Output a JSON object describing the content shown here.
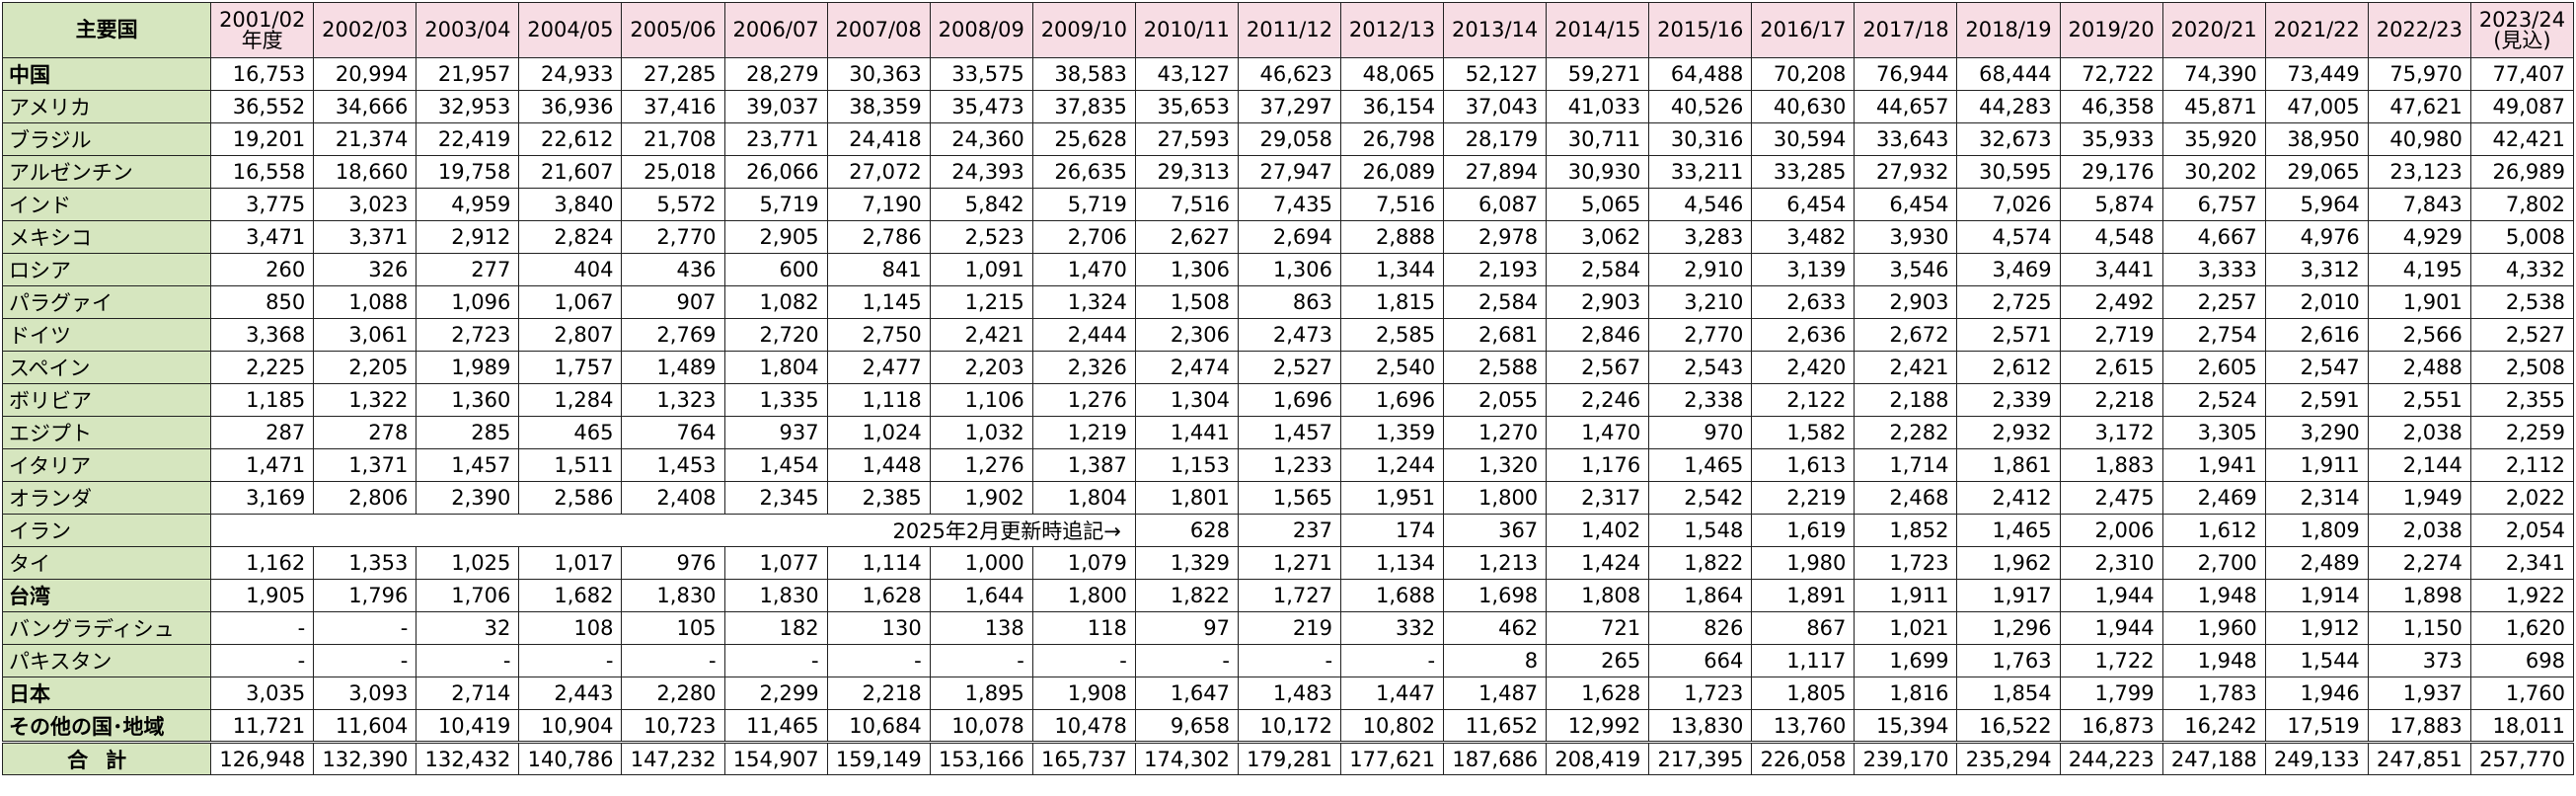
{
  "header": {
    "corner": "主要国",
    "years": [
      "2001/02\n年度",
      "2002/03",
      "2003/04",
      "2004/05",
      "2005/06",
      "2006/07",
      "2007/08",
      "2008/09",
      "2009/10",
      "2010/11",
      "2011/12",
      "2012/13",
      "2013/14",
      "2014/15",
      "2015/16",
      "2016/17",
      "2017/18",
      "2018/19",
      "2019/20",
      "2020/21",
      "2021/22",
      "2022/23",
      "2023/24\n(見込)"
    ]
  },
  "rows": [
    {
      "name": "中国",
      "bold": true,
      "values": [
        "16,753",
        "20,994",
        "21,957",
        "24,933",
        "27,285",
        "28,279",
        "30,363",
        "33,575",
        "38,583",
        "43,127",
        "46,623",
        "48,065",
        "52,127",
        "59,271",
        "64,488",
        "70,208",
        "76,944",
        "68,444",
        "72,722",
        "74,390",
        "73,449",
        "75,970",
        "77,407"
      ]
    },
    {
      "name": "アメリカ",
      "bold": false,
      "values": [
        "36,552",
        "34,666",
        "32,953",
        "36,936",
        "37,416",
        "39,037",
        "38,359",
        "35,473",
        "37,835",
        "35,653",
        "37,297",
        "36,154",
        "37,043",
        "41,033",
        "40,526",
        "40,630",
        "44,657",
        "44,283",
        "46,358",
        "45,871",
        "47,005",
        "47,621",
        "49,087"
      ]
    },
    {
      "name": "ブラジル",
      "bold": false,
      "values": [
        "19,201",
        "21,374",
        "22,419",
        "22,612",
        "21,708",
        "23,771",
        "24,418",
        "24,360",
        "25,628",
        "27,593",
        "29,058",
        "26,798",
        "28,179",
        "30,711",
        "30,316",
        "30,594",
        "33,643",
        "32,673",
        "35,933",
        "35,920",
        "38,950",
        "40,980",
        "42,421"
      ]
    },
    {
      "name": "アルゼンチン",
      "bold": false,
      "values": [
        "16,558",
        "18,660",
        "19,758",
        "21,607",
        "25,018",
        "26,066",
        "27,072",
        "24,393",
        "26,635",
        "29,313",
        "27,947",
        "26,089",
        "27,894",
        "30,930",
        "33,211",
        "33,285",
        "27,932",
        "30,595",
        "29,176",
        "30,202",
        "29,065",
        "23,123",
        "26,989"
      ]
    },
    {
      "name": "インド",
      "bold": false,
      "values": [
        "3,775",
        "3,023",
        "4,959",
        "3,840",
        "5,572",
        "5,719",
        "7,190",
        "5,842",
        "5,719",
        "7,516",
        "7,435",
        "7,516",
        "6,087",
        "5,065",
        "4,546",
        "6,454",
        "6,454",
        "7,026",
        "5,874",
        "6,757",
        "5,964",
        "7,843",
        "7,802"
      ]
    },
    {
      "name": "メキシコ",
      "bold": false,
      "values": [
        "3,471",
        "3,371",
        "2,912",
        "2,824",
        "2,770",
        "2,905",
        "2,786",
        "2,523",
        "2,706",
        "2,627",
        "2,694",
        "2,888",
        "2,978",
        "3,062",
        "3,283",
        "3,482",
        "3,930",
        "4,574",
        "4,548",
        "4,667",
        "4,976",
        "4,929",
        "5,008"
      ]
    },
    {
      "name": "ロシア",
      "bold": false,
      "values": [
        "260",
        "326",
        "277",
        "404",
        "436",
        "600",
        "841",
        "1,091",
        "1,470",
        "1,306",
        "1,306",
        "1,344",
        "2,193",
        "2,584",
        "2,910",
        "3,139",
        "3,546",
        "3,469",
        "3,441",
        "3,333",
        "3,312",
        "4,195",
        "4,332"
      ]
    },
    {
      "name": "パラグァイ",
      "bold": false,
      "values": [
        "850",
        "1,088",
        "1,096",
        "1,067",
        "907",
        "1,082",
        "1,145",
        "1,215",
        "1,324",
        "1,508",
        "863",
        "1,815",
        "2,584",
        "2,903",
        "3,210",
        "2,633",
        "2,903",
        "2,725",
        "2,492",
        "2,257",
        "2,010",
        "1,901",
        "2,538"
      ]
    },
    {
      "name": "ドイツ",
      "bold": false,
      "values": [
        "3,368",
        "3,061",
        "2,723",
        "2,807",
        "2,769",
        "2,720",
        "2,750",
        "2,421",
        "2,444",
        "2,306",
        "2,473",
        "2,585",
        "2,681",
        "2,846",
        "2,770",
        "2,636",
        "2,672",
        "2,571",
        "2,719",
        "2,754",
        "2,616",
        "2,566",
        "2,527"
      ]
    },
    {
      "name": "スペイン",
      "bold": false,
      "values": [
        "2,225",
        "2,205",
        "1,989",
        "1,757",
        "1,489",
        "1,804",
        "2,477",
        "2,203",
        "2,326",
        "2,474",
        "2,527",
        "2,540",
        "2,588",
        "2,567",
        "2,543",
        "2,420",
        "2,421",
        "2,612",
        "2,615",
        "2,605",
        "2,547",
        "2,488",
        "2,508"
      ]
    },
    {
      "name": "ボリビア",
      "bold": false,
      "values": [
        "1,185",
        "1,322",
        "1,360",
        "1,284",
        "1,323",
        "1,335",
        "1,118",
        "1,106",
        "1,276",
        "1,304",
        "1,696",
        "1,696",
        "2,055",
        "2,246",
        "2,338",
        "2,122",
        "2,188",
        "2,339",
        "2,218",
        "2,524",
        "2,591",
        "2,551",
        "2,355"
      ]
    },
    {
      "name": "エジプト",
      "bold": false,
      "values": [
        "287",
        "278",
        "285",
        "465",
        "764",
        "937",
        "1,024",
        "1,032",
        "1,219",
        "1,441",
        "1,457",
        "1,359",
        "1,270",
        "1,470",
        "970",
        "1,582",
        "2,282",
        "2,932",
        "3,172",
        "3,305",
        "3,290",
        "2,038",
        "2,259"
      ]
    },
    {
      "name": "イタリア",
      "bold": false,
      "values": [
        "1,471",
        "1,371",
        "1,457",
        "1,511",
        "1,453",
        "1,454",
        "1,448",
        "1,276",
        "1,387",
        "1,153",
        "1,233",
        "1,244",
        "1,320",
        "1,176",
        "1,465",
        "1,613",
        "1,714",
        "1,861",
        "1,883",
        "1,941",
        "1,911",
        "2,144",
        "2,112"
      ]
    },
    {
      "name": "オランダ",
      "bold": false,
      "values": [
        "3,169",
        "2,806",
        "2,390",
        "2,586",
        "2,408",
        "2,345",
        "2,385",
        "1,902",
        "1,804",
        "1,801",
        "1,565",
        "1,951",
        "1,800",
        "2,317",
        "2,542",
        "2,219",
        "2,468",
        "2,412",
        "2,475",
        "2,469",
        "2,314",
        "1,949",
        "2,022"
      ]
    },
    {
      "name": "イラン",
      "bold": false,
      "note": "2025年2月更新時追記→",
      "values": [
        "",
        "",
        "",
        "",
        "",
        "",
        "",
        "",
        "",
        "628",
        "237",
        "174",
        "367",
        "1,402",
        "1,548",
        "1,619",
        "1,852",
        "1,465",
        "2,006",
        "1,612",
        "1,809",
        "2,038",
        "2,054"
      ]
    },
    {
      "name": "タイ",
      "bold": false,
      "values": [
        "1,162",
        "1,353",
        "1,025",
        "1,017",
        "976",
        "1,077",
        "1,114",
        "1,000",
        "1,079",
        "1,329",
        "1,271",
        "1,134",
        "1,213",
        "1,424",
        "1,822",
        "1,980",
        "1,723",
        "1,962",
        "2,310",
        "2,700",
        "2,489",
        "2,274",
        "2,341"
      ]
    },
    {
      "name": "台湾",
      "bold": true,
      "values": [
        "1,905",
        "1,796",
        "1,706",
        "1,682",
        "1,830",
        "1,830",
        "1,628",
        "1,644",
        "1,800",
        "1,822",
        "1,727",
        "1,688",
        "1,698",
        "1,808",
        "1,864",
        "1,891",
        "1,911",
        "1,917",
        "1,944",
        "1,948",
        "1,914",
        "1,898",
        "1,922"
      ]
    },
    {
      "name": "バングラディシュ",
      "bold": false,
      "values": [
        "-",
        "-",
        "32",
        "108",
        "105",
        "182",
        "130",
        "138",
        "118",
        "97",
        "219",
        "332",
        "462",
        "721",
        "826",
        "867",
        "1,021",
        "1,296",
        "1,944",
        "1,960",
        "1,912",
        "1,150",
        "1,620"
      ]
    },
    {
      "name": "パキスタン",
      "bold": false,
      "values": [
        "-",
        "-",
        "-",
        "-",
        "-",
        "-",
        "-",
        "-",
        "-",
        "-",
        "-",
        "-",
        "8",
        "265",
        "664",
        "1,117",
        "1,699",
        "1,763",
        "1,722",
        "1,948",
        "1,544",
        "373",
        "698"
      ]
    },
    {
      "name": "日本",
      "bold": true,
      "values": [
        "3,035",
        "3,093",
        "2,714",
        "2,443",
        "2,280",
        "2,299",
        "2,218",
        "1,895",
        "1,908",
        "1,647",
        "1,483",
        "1,447",
        "1,487",
        "1,628",
        "1,723",
        "1,805",
        "1,816",
        "1,854",
        "1,799",
        "1,783",
        "1,946",
        "1,937",
        "1,760"
      ]
    },
    {
      "name": "その他の国･地域",
      "bold": true,
      "values": [
        "11,721",
        "11,604",
        "10,419",
        "10,904",
        "10,723",
        "11,465",
        "10,684",
        "10,078",
        "10,478",
        "9,658",
        "10,172",
        "10,802",
        "11,652",
        "12,992",
        "13,830",
        "13,760",
        "15,394",
        "16,522",
        "16,873",
        "16,242",
        "17,519",
        "17,883",
        "18,011"
      ]
    }
  ],
  "total": {
    "name": "合計",
    "values": [
      "126,948",
      "132,390",
      "132,432",
      "140,786",
      "147,232",
      "154,907",
      "159,149",
      "153,166",
      "165,737",
      "174,302",
      "179,281",
      "177,621",
      "187,686",
      "208,419",
      "217,395",
      "226,058",
      "239,170",
      "235,294",
      "244,223",
      "247,188",
      "249,133",
      "247,851",
      "257,770"
    ]
  }
}
